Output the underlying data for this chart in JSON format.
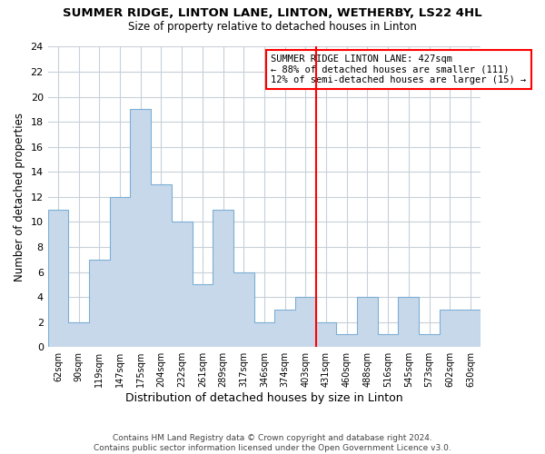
{
  "title": "SUMMER RIDGE, LINTON LANE, LINTON, WETHERBY, LS22 4HL",
  "subtitle": "Size of property relative to detached houses in Linton",
  "xlabel": "Distribution of detached houses by size in Linton",
  "ylabel": "Number of detached properties",
  "footer_line1": "Contains HM Land Registry data © Crown copyright and database right 2024.",
  "footer_line2": "Contains public sector information licensed under the Open Government Licence v3.0.",
  "bin_labels": [
    "62sqm",
    "90sqm",
    "119sqm",
    "147sqm",
    "175sqm",
    "204sqm",
    "232sqm",
    "261sqm",
    "289sqm",
    "317sqm",
    "346sqm",
    "374sqm",
    "403sqm",
    "431sqm",
    "460sqm",
    "488sqm",
    "516sqm",
    "545sqm",
    "573sqm",
    "602sqm",
    "630sqm"
  ],
  "bar_heights": [
    11,
    2,
    7,
    12,
    19,
    13,
    10,
    5,
    11,
    6,
    2,
    3,
    4,
    2,
    1,
    4,
    1,
    4,
    1,
    3,
    3
  ],
  "bar_color": "#c8d8eb",
  "bar_edge_color": "#7bafd4",
  "vline_x_index": 13,
  "vline_color": "red",
  "annotation_text": "SUMMER RIDGE LINTON LANE: 427sqm\n← 88% of detached houses are smaller (111)\n12% of semi-detached houses are larger (15) →",
  "ylim": [
    0,
    24
  ],
  "yticks": [
    0,
    2,
    4,
    6,
    8,
    10,
    12,
    14,
    16,
    18,
    20,
    22,
    24
  ],
  "grid_color": "#c8d0d8",
  "background_color": "#ffffff"
}
